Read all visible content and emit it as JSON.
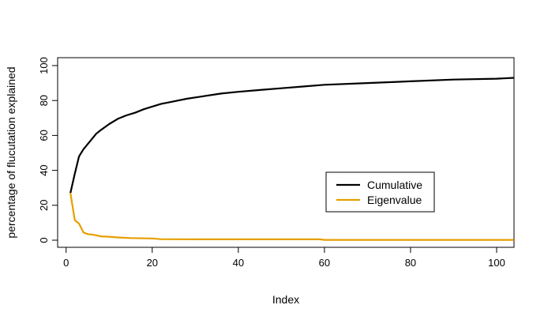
{
  "chart_data": {
    "type": "line",
    "title": "",
    "xlabel": "Index",
    "ylabel": "percentage of flucutation explained",
    "xlim": [
      0,
      104
    ],
    "ylim": [
      0,
      100
    ],
    "x_ticks": [
      0,
      20,
      40,
      60,
      80,
      100
    ],
    "y_ticks": [
      0,
      20,
      40,
      60,
      80,
      100
    ],
    "grid": false,
    "legend_position": "center-right",
    "series": [
      {
        "name": "Cumulative",
        "color": "#000000",
        "x": [
          1,
          2,
          3,
          4,
          5,
          6,
          7,
          8,
          10,
          12,
          14,
          16,
          18,
          20,
          22,
          25,
          28,
          32,
          36,
          40,
          45,
          50,
          55,
          60,
          70,
          80,
          90,
          100,
          104
        ],
        "y": [
          27,
          38,
          48,
          52,
          55,
          58,
          61,
          63,
          66.5,
          69.5,
          71.5,
          73,
          75,
          76.5,
          78,
          79.5,
          81,
          82.5,
          84,
          85,
          86,
          87,
          88,
          89,
          90,
          91,
          92,
          92.5,
          93
        ]
      },
      {
        "name": "Eigenvalue",
        "color": "#E69F00",
        "x": [
          1,
          2,
          3,
          4,
          5,
          6,
          7,
          8,
          10,
          12,
          15,
          20,
          22,
          30,
          40,
          50,
          59,
          60,
          70,
          80,
          90,
          100,
          104
        ],
        "y": [
          27,
          11.5,
          9.5,
          4.5,
          3.5,
          3.2,
          2.8,
          2.2,
          2.0,
          1.6,
          1.2,
          1.0,
          0.6,
          0.5,
          0.5,
          0.5,
          0.5,
          0.2,
          0.2,
          0.2,
          0.2,
          0.2,
          0.2
        ]
      }
    ]
  }
}
